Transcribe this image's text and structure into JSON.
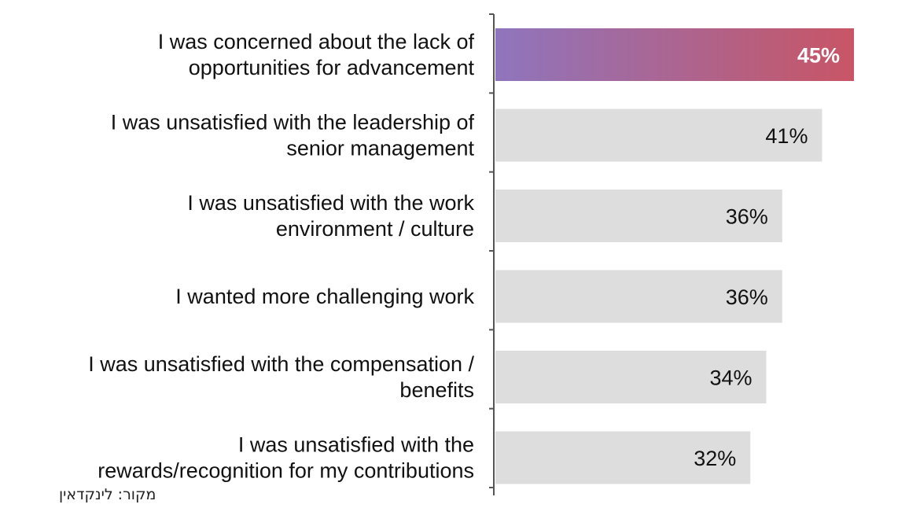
{
  "chart_data": {
    "type": "bar",
    "orientation": "horizontal",
    "categories": [
      [
        "I was concerned about the lack of",
        "opportunities for advancement"
      ],
      [
        "I was unsatisfied with the leadership of",
        "senior management"
      ],
      [
        "I was unsatisfied with the work",
        "environment / culture"
      ],
      [
        "I wanted more challenging work"
      ],
      [
        "I was unsatisfied with the compensation /",
        "benefits"
      ],
      [
        "I was unsatisfied with the",
        "rewards/recognition for my contributions"
      ]
    ],
    "values": [
      45,
      41,
      36,
      36,
      34,
      32
    ],
    "value_labels": [
      "45%",
      "41%",
      "36%",
      "36%",
      "34%",
      "32%"
    ],
    "highlight_index": 0,
    "colors": {
      "highlight_start": "#8f75bd",
      "highlight_end": "#c85565",
      "bar": "#dddddd",
      "axis": "#555555"
    },
    "xlim": [
      0,
      45
    ],
    "grid": false
  },
  "source": "מקור: לינקדאין"
}
